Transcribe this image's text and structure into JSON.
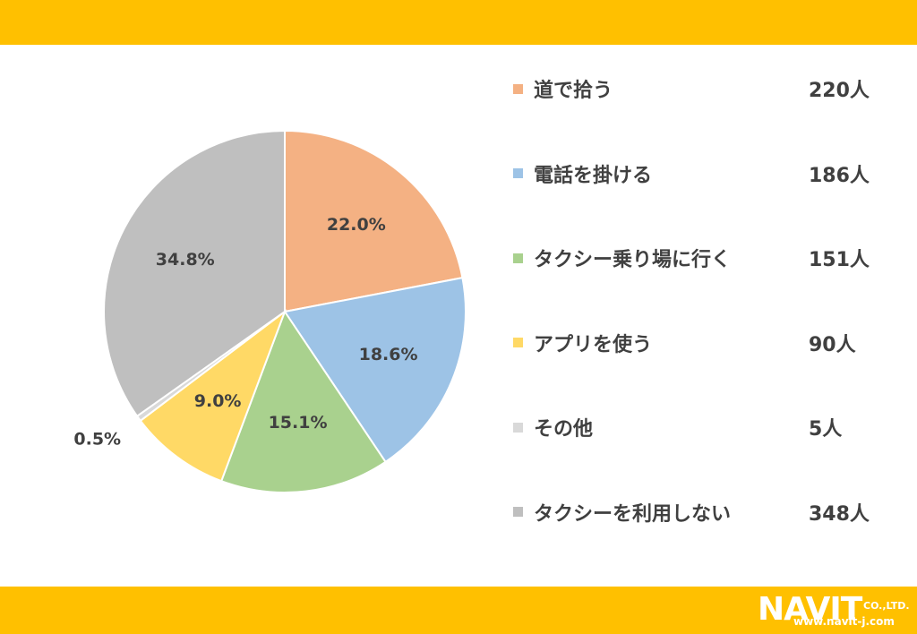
{
  "colors": {
    "band": "#FFC000",
    "text": "#404040"
  },
  "chart_data": {
    "type": "pie",
    "categories": [
      "道で拾う",
      "電話を掛ける",
      "タクシー乗り場に行く",
      "アプリを使う",
      "その他",
      "タクシーを利用しない"
    ],
    "values": [
      22.0,
      18.6,
      15.1,
      9.0,
      0.5,
      34.8
    ],
    "value_labels": [
      "22.0%",
      "18.6%",
      "15.1%",
      "9.0%",
      "0.5%",
      "34.8%"
    ],
    "counts": [
      "220人",
      "186人",
      "151人",
      "90人",
      "5人",
      "348人"
    ],
    "colors": [
      "#F4B183",
      "#9DC3E6",
      "#A9D18E",
      "#FFD966",
      "#D9D9D9",
      "#BFBFBF"
    ],
    "start_angle_deg": 0,
    "direction": "clockwise",
    "legend_position": "right"
  },
  "logo": {
    "mark": "NAVIT",
    "suffix": "CO.,LTD.",
    "url": "www.navit-j.com"
  }
}
